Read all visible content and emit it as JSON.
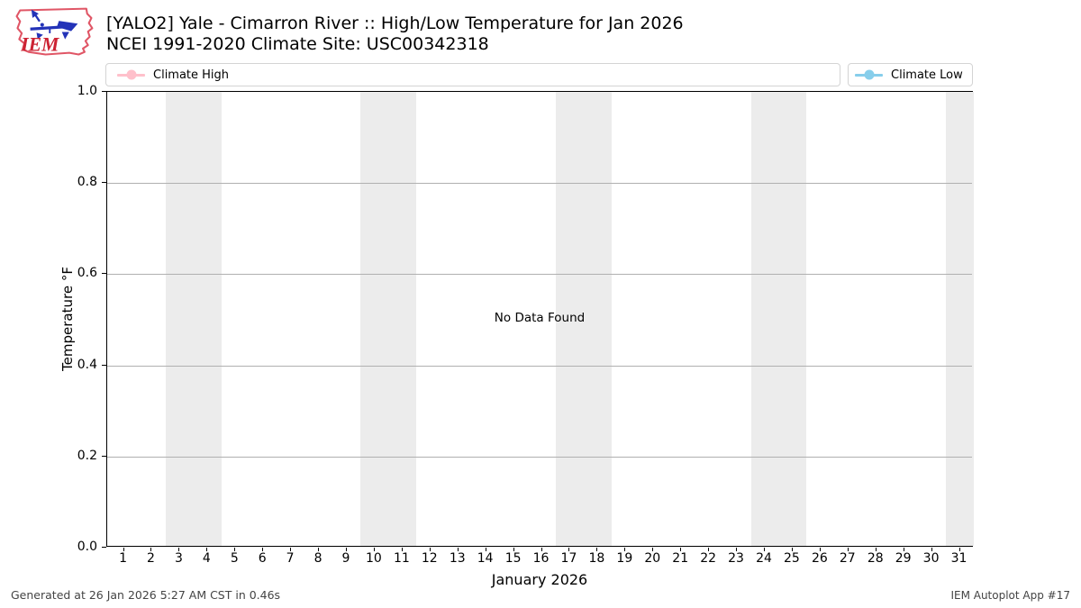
{
  "header": {
    "logo_text": "IEM"
  },
  "chart_data": {
    "type": "line",
    "title": "[YALO2] Yale - Cimarron River :: High/Low Temperature for Jan 2026",
    "subtitle": "NCEI 1991-2020 Climate Site: USC00342318",
    "xlabel": "January 2026",
    "ylabel": "Temperature °F",
    "no_data_message": "No Data Found",
    "xlim": [
      0.4,
      31.5
    ],
    "ylim": [
      0.0,
      1.0
    ],
    "x_ticks": [
      1,
      2,
      3,
      4,
      5,
      6,
      7,
      8,
      9,
      10,
      11,
      12,
      13,
      14,
      15,
      16,
      17,
      18,
      19,
      20,
      21,
      22,
      23,
      24,
      25,
      26,
      27,
      28,
      29,
      30,
      31
    ],
    "y_tick_values": [
      0.0,
      0.2,
      0.4,
      0.6,
      0.8,
      1.0
    ],
    "y_tick_labels": [
      "0.0",
      "0.2",
      "0.4",
      "0.6",
      "0.8",
      "1.0"
    ],
    "grid": true,
    "grid_color": "#b0b0b0",
    "weekend_band_color": "#ececec",
    "weekend_bands": [
      [
        2.5,
        4.5
      ],
      [
        9.5,
        11.5
      ],
      [
        16.5,
        18.5
      ],
      [
        23.5,
        25.5
      ],
      [
        30.5,
        31.5
      ]
    ],
    "legend": [
      {
        "label": "Climate High",
        "color": "#ffc0cb"
      },
      {
        "label": "Climate Low",
        "color": "#87ceeb"
      }
    ],
    "series": [
      {
        "name": "Climate High",
        "color": "#ffc0cb",
        "x": [],
        "values": []
      },
      {
        "name": "Climate Low",
        "color": "#87ceeb",
        "x": [],
        "values": []
      }
    ]
  },
  "footer": {
    "generated": "Generated at 26 Jan 2026 5:27 AM CST in 0.46s",
    "app": "IEM Autoplot App #17"
  }
}
